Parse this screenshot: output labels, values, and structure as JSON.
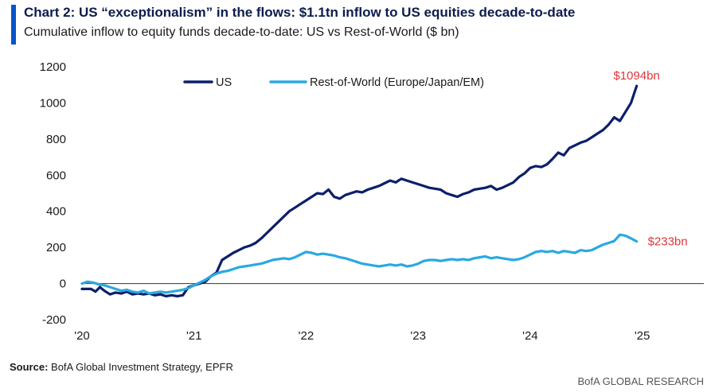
{
  "header": {
    "title": "Chart 2: US “exceptionalism” in the flows: $1.1tn inflow to US equities decade-to-date",
    "subtitle": "Cumulative inflow to equity funds decade-to-date: US vs Rest-of-World ($ bn)"
  },
  "footer": {
    "source_label": "Source:",
    "source_text": " BofA Global Investment Strategy, EPFR",
    "brand": "BofA GLOBAL RESEARCH"
  },
  "colors": {
    "us": "#0c1f6b",
    "row": "#29a9e0",
    "end_label": "#e0353a",
    "accent": "#0a53c7"
  },
  "chart_data": {
    "type": "line",
    "xlabel": "",
    "ylabel": "",
    "ylim": [
      -200,
      1200
    ],
    "yticks": [
      -200,
      0,
      200,
      400,
      600,
      800,
      1000,
      1200
    ],
    "xlim": [
      2020,
      2025.55
    ],
    "xticks": [
      {
        "value": 2020,
        "label": "'20"
      },
      {
        "value": 2021,
        "label": "'21"
      },
      {
        "value": 2022,
        "label": "'22"
      },
      {
        "value": 2023,
        "label": "'23"
      },
      {
        "value": 2024,
        "label": "'24"
      },
      {
        "value": 2025,
        "label": "'25"
      }
    ],
    "grid": false,
    "legend_position": "top-center",
    "series": [
      {
        "name": "US",
        "end_label": "$1094bn",
        "points": [
          [
            2020.0,
            -30
          ],
          [
            2020.08,
            -30
          ],
          [
            2020.12,
            -45
          ],
          [
            2020.16,
            -20
          ],
          [
            2020.2,
            -40
          ],
          [
            2020.25,
            -60
          ],
          [
            2020.3,
            -50
          ],
          [
            2020.35,
            -55
          ],
          [
            2020.4,
            -45
          ],
          [
            2020.45,
            -60
          ],
          [
            2020.5,
            -55
          ],
          [
            2020.55,
            -60
          ],
          [
            2020.6,
            -55
          ],
          [
            2020.65,
            -65
          ],
          [
            2020.7,
            -60
          ],
          [
            2020.75,
            -70
          ],
          [
            2020.8,
            -65
          ],
          [
            2020.85,
            -70
          ],
          [
            2020.9,
            -65
          ],
          [
            2020.95,
            -20
          ],
          [
            2021.0,
            -10
          ],
          [
            2021.05,
            0
          ],
          [
            2021.1,
            10
          ],
          [
            2021.15,
            40
          ],
          [
            2021.2,
            60
          ],
          [
            2021.25,
            130
          ],
          [
            2021.3,
            150
          ],
          [
            2021.35,
            170
          ],
          [
            2021.4,
            185
          ],
          [
            2021.45,
            200
          ],
          [
            2021.5,
            210
          ],
          [
            2021.55,
            225
          ],
          [
            2021.6,
            250
          ],
          [
            2021.65,
            280
          ],
          [
            2021.7,
            310
          ],
          [
            2021.75,
            340
          ],
          [
            2021.8,
            370
          ],
          [
            2021.85,
            400
          ],
          [
            2021.9,
            420
          ],
          [
            2021.95,
            440
          ],
          [
            2022.0,
            460
          ],
          [
            2022.05,
            480
          ],
          [
            2022.1,
            500
          ],
          [
            2022.15,
            495
          ],
          [
            2022.2,
            520
          ],
          [
            2022.25,
            480
          ],
          [
            2022.3,
            470
          ],
          [
            2022.35,
            490
          ],
          [
            2022.4,
            500
          ],
          [
            2022.45,
            510
          ],
          [
            2022.5,
            505
          ],
          [
            2022.55,
            520
          ],
          [
            2022.6,
            530
          ],
          [
            2022.65,
            540
          ],
          [
            2022.7,
            555
          ],
          [
            2022.75,
            570
          ],
          [
            2022.8,
            560
          ],
          [
            2022.85,
            580
          ],
          [
            2022.9,
            570
          ],
          [
            2022.95,
            560
          ],
          [
            2023.0,
            550
          ],
          [
            2023.05,
            540
          ],
          [
            2023.1,
            530
          ],
          [
            2023.15,
            525
          ],
          [
            2023.2,
            520
          ],
          [
            2023.25,
            500
          ],
          [
            2023.3,
            490
          ],
          [
            2023.35,
            480
          ],
          [
            2023.4,
            495
          ],
          [
            2023.45,
            505
          ],
          [
            2023.5,
            520
          ],
          [
            2023.55,
            525
          ],
          [
            2023.6,
            530
          ],
          [
            2023.65,
            540
          ],
          [
            2023.7,
            520
          ],
          [
            2023.75,
            530
          ],
          [
            2023.8,
            545
          ],
          [
            2023.85,
            560
          ],
          [
            2023.9,
            590
          ],
          [
            2023.95,
            610
          ],
          [
            2024.0,
            640
          ],
          [
            2024.05,
            650
          ],
          [
            2024.1,
            645
          ],
          [
            2024.15,
            660
          ],
          [
            2024.2,
            690
          ],
          [
            2024.25,
            725
          ],
          [
            2024.3,
            710
          ],
          [
            2024.35,
            750
          ],
          [
            2024.4,
            765
          ],
          [
            2024.45,
            780
          ],
          [
            2024.5,
            790
          ],
          [
            2024.55,
            810
          ],
          [
            2024.6,
            830
          ],
          [
            2024.65,
            850
          ],
          [
            2024.7,
            880
          ],
          [
            2024.75,
            920
          ],
          [
            2024.8,
            900
          ],
          [
            2024.85,
            950
          ],
          [
            2024.9,
            1000
          ],
          [
            2024.95,
            1094
          ]
        ]
      },
      {
        "name": "Rest-of-World (Europe/Japan/EM)",
        "end_label": "$233bn",
        "points": [
          [
            2020.0,
            0
          ],
          [
            2020.05,
            10
          ],
          [
            2020.1,
            5
          ],
          [
            2020.15,
            -5
          ],
          [
            2020.2,
            -10
          ],
          [
            2020.25,
            -20
          ],
          [
            2020.3,
            -30
          ],
          [
            2020.35,
            -40
          ],
          [
            2020.4,
            -35
          ],
          [
            2020.45,
            -45
          ],
          [
            2020.5,
            -50
          ],
          [
            2020.55,
            -40
          ],
          [
            2020.6,
            -55
          ],
          [
            2020.65,
            -50
          ],
          [
            2020.7,
            -45
          ],
          [
            2020.75,
            -50
          ],
          [
            2020.8,
            -45
          ],
          [
            2020.85,
            -40
          ],
          [
            2020.9,
            -35
          ],
          [
            2020.95,
            -25
          ],
          [
            2021.0,
            -10
          ],
          [
            2021.05,
            5
          ],
          [
            2021.1,
            20
          ],
          [
            2021.15,
            40
          ],
          [
            2021.2,
            55
          ],
          [
            2021.25,
            65
          ],
          [
            2021.3,
            70
          ],
          [
            2021.35,
            80
          ],
          [
            2021.4,
            90
          ],
          [
            2021.45,
            95
          ],
          [
            2021.5,
            100
          ],
          [
            2021.55,
            105
          ],
          [
            2021.6,
            110
          ],
          [
            2021.65,
            120
          ],
          [
            2021.7,
            130
          ],
          [
            2021.75,
            135
          ],
          [
            2021.8,
            140
          ],
          [
            2021.85,
            135
          ],
          [
            2021.9,
            145
          ],
          [
            2021.95,
            160
          ],
          [
            2022.0,
            175
          ],
          [
            2022.05,
            170
          ],
          [
            2022.1,
            160
          ],
          [
            2022.15,
            165
          ],
          [
            2022.2,
            160
          ],
          [
            2022.25,
            155
          ],
          [
            2022.3,
            145
          ],
          [
            2022.35,
            140
          ],
          [
            2022.4,
            130
          ],
          [
            2022.45,
            120
          ],
          [
            2022.5,
            110
          ],
          [
            2022.55,
            105
          ],
          [
            2022.6,
            100
          ],
          [
            2022.65,
            95
          ],
          [
            2022.7,
            100
          ],
          [
            2022.75,
            105
          ],
          [
            2022.8,
            100
          ],
          [
            2022.85,
            105
          ],
          [
            2022.9,
            95
          ],
          [
            2022.95,
            100
          ],
          [
            2023.0,
            110
          ],
          [
            2023.05,
            125
          ],
          [
            2023.1,
            130
          ],
          [
            2023.15,
            130
          ],
          [
            2023.2,
            125
          ],
          [
            2023.25,
            130
          ],
          [
            2023.3,
            135
          ],
          [
            2023.35,
            130
          ],
          [
            2023.4,
            135
          ],
          [
            2023.45,
            130
          ],
          [
            2023.5,
            140
          ],
          [
            2023.55,
            145
          ],
          [
            2023.6,
            150
          ],
          [
            2023.65,
            140
          ],
          [
            2023.7,
            145
          ],
          [
            2023.75,
            140
          ],
          [
            2023.8,
            135
          ],
          [
            2023.85,
            130
          ],
          [
            2023.9,
            135
          ],
          [
            2023.95,
            145
          ],
          [
            2024.0,
            160
          ],
          [
            2024.05,
            175
          ],
          [
            2024.1,
            180
          ],
          [
            2024.15,
            175
          ],
          [
            2024.2,
            180
          ],
          [
            2024.25,
            170
          ],
          [
            2024.3,
            180
          ],
          [
            2024.35,
            175
          ],
          [
            2024.4,
            170
          ],
          [
            2024.45,
            185
          ],
          [
            2024.5,
            180
          ],
          [
            2024.55,
            185
          ],
          [
            2024.6,
            200
          ],
          [
            2024.65,
            215
          ],
          [
            2024.7,
            225
          ],
          [
            2024.75,
            235
          ],
          [
            2024.8,
            270
          ],
          [
            2024.85,
            265
          ],
          [
            2024.9,
            250
          ],
          [
            2024.95,
            233
          ]
        ]
      }
    ]
  }
}
